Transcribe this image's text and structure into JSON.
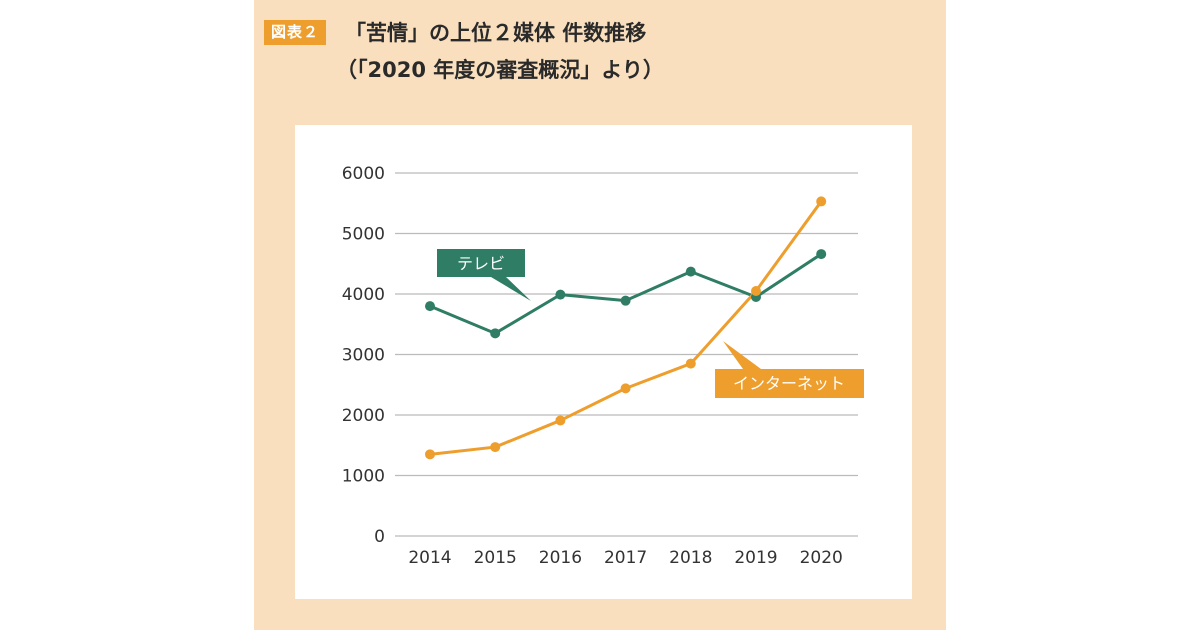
{
  "header": {
    "tag": "図表２",
    "title_line_1": "「苦情」の上位２媒体 件数推移",
    "title_line_2": "（「2020 年度の審査概況」より）"
  },
  "colors": {
    "background": "#f9dfbd",
    "tag": "#ee9e2d",
    "tv": "#2e7d64",
    "internet": "#ee9e2d",
    "grid": "#bbbbbb"
  },
  "chart_data": {
    "type": "line",
    "x": [
      2014,
      2015,
      2016,
      2017,
      2018,
      2019,
      2020
    ],
    "x_tick_labels": [
      "2014",
      "2015",
      "2016",
      "2017",
      "2018",
      "2019",
      "2020"
    ],
    "y_tick_labels": [
      "0",
      "1000",
      "2000",
      "3000",
      "4000",
      "5000",
      "6000"
    ],
    "ylim": [
      0,
      6000
    ],
    "grid": true,
    "series": [
      {
        "name": "テレビ",
        "color": "#2e7d64",
        "values": [
          3800,
          3350,
          3990,
          3890,
          4370,
          3950,
          4660
        ]
      },
      {
        "name": "インターネット",
        "color": "#ee9e2d",
        "values": [
          1350,
          1470,
          1910,
          2440,
          2850,
          4050,
          5530
        ]
      }
    ]
  }
}
